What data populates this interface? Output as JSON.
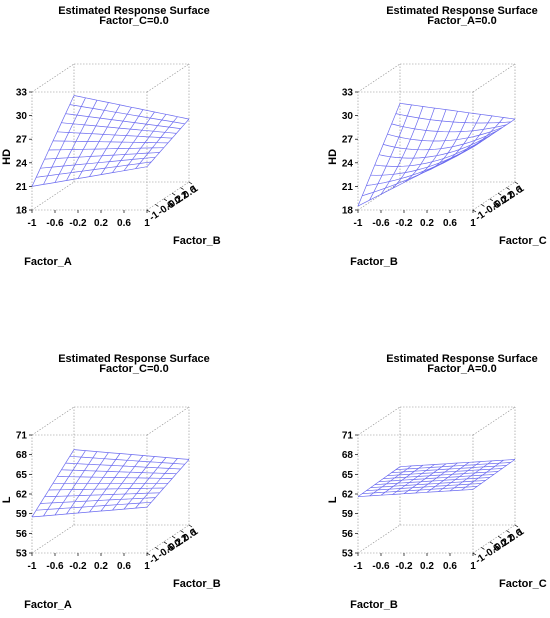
{
  "chart_data": [
    {
      "type": "surface",
      "title": "Estimated Response Surface",
      "subtitle": "Factor_C=0.0",
      "xlabel": "Factor_A",
      "ylabel": "Factor_B",
      "zlabel": "HD",
      "x_ticks": [
        "-1",
        "-0.6",
        "-0.2",
        "0.2",
        "0.6",
        "1"
      ],
      "y_ticks": [
        "-1",
        "-0.6",
        "-0.2",
        "0.2",
        "0.6",
        "1"
      ],
      "z_ticks": [
        "18",
        "21",
        "24",
        "27",
        "30",
        "33"
      ],
      "xlim": [
        -1,
        1
      ],
      "ylim": [
        -1,
        1
      ],
      "zlim": [
        18,
        33
      ],
      "grid_n": 11,
      "corners": {
        "x-1_y-1": 21,
        "x1_y-1": 23.5,
        "x-1_y1": 29,
        "x1_y1": 26
      },
      "curvature": 0
    },
    {
      "type": "surface",
      "title": "Estimated Response Surface",
      "subtitle": "Factor_A=0.0",
      "xlabel": "Factor_B",
      "ylabel": "Factor_C",
      "zlabel": "HD",
      "x_ticks": [
        "-1",
        "-0.6",
        "-0.2",
        "0.2",
        "0.6",
        "1"
      ],
      "y_ticks": [
        "-1",
        "-0.6",
        "-0.2",
        "0.2",
        "0.6",
        "1"
      ],
      "z_ticks": [
        "18",
        "21",
        "24",
        "27",
        "30",
        "33"
      ],
      "xlim": [
        -1,
        1
      ],
      "ylim": [
        -1,
        1
      ],
      "zlim": [
        18,
        33
      ],
      "grid_n": 11,
      "corners": {
        "x-1_y-1": 18.5,
        "x1_y-1": 26,
        "x-1_y1": 28,
        "x1_y1": 26
      },
      "curvature": -1.5
    },
    {
      "type": "surface",
      "title": "Estimated Response Surface",
      "subtitle": "Factor_C=0.0",
      "xlabel": "Factor_A",
      "ylabel": "Factor_B",
      "zlabel": "L",
      "x_ticks": [
        "-1",
        "-0.6",
        "-0.2",
        "0.2",
        "0.6",
        "1"
      ],
      "y_ticks": [
        "-1",
        "-0.6",
        "-0.2",
        "0.2",
        "0.6",
        "1"
      ],
      "z_ticks": [
        "53",
        "56",
        "59",
        "62",
        "65",
        "68",
        "71"
      ],
      "xlim": [
        -1,
        1
      ],
      "ylim": [
        -1,
        1
      ],
      "zlim": [
        53,
        71
      ],
      "grid_n": 11,
      "corners": {
        "x-1_y-1": 58.5,
        "x1_y-1": 60,
        "x-1_y1": 64.5,
        "x1_y1": 63
      },
      "curvature": 0
    },
    {
      "type": "surface",
      "title": "Estimated Response Surface",
      "subtitle": "Factor_A=0.0",
      "xlabel": "Factor_B",
      "ylabel": "Factor_C",
      "zlabel": "L",
      "x_ticks": [
        "-1",
        "-0.6",
        "-0.2",
        "0.2",
        "0.6",
        "1"
      ],
      "y_ticks": [
        "-1",
        "-0.6",
        "-0.2",
        "0.2",
        "0.6",
        "1"
      ],
      "z_ticks": [
        "53",
        "56",
        "59",
        "62",
        "65",
        "68",
        "71"
      ],
      "xlim": [
        -1,
        1
      ],
      "ylim": [
        -1,
        1
      ],
      "zlim": [
        53,
        71
      ],
      "grid_n": 11,
      "corners": {
        "x-1_y-1": 61.6,
        "x1_y-1": 62.7,
        "x-1_y1": 61.9,
        "x1_y1": 63
      },
      "curvature": 0
    }
  ]
}
